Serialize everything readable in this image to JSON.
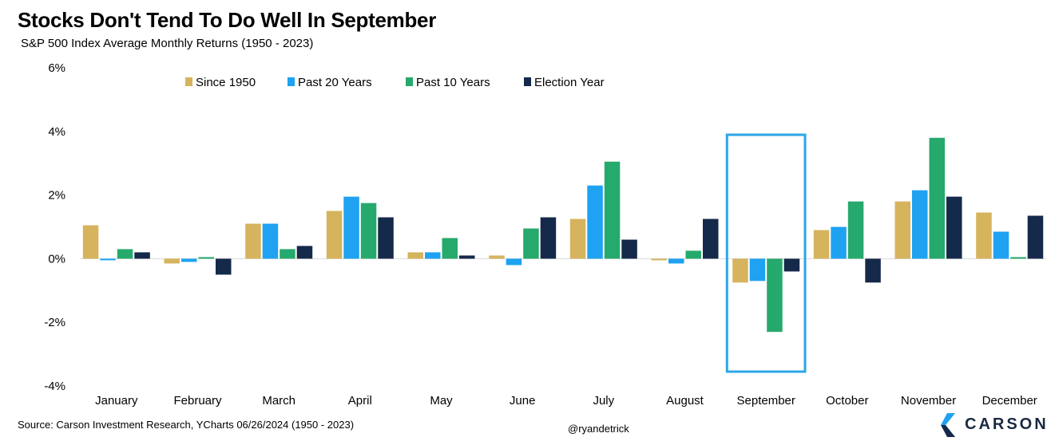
{
  "header": {
    "title": "Stocks Don't Tend To Do Well In September",
    "subtitle": "S&P 500 Index Average Monthly Returns (1950 - 2023)"
  },
  "footer": {
    "source": "Source: Carson Investment Research, YCharts 06/26/2024 (1950 - 2023)",
    "handle": "@ryandetrick",
    "logo_text": "CARSON"
  },
  "colors": {
    "since_1950": "#d6b35d",
    "past_20": "#1ea2f1",
    "past_10": "#26a96c",
    "election": "#15294a",
    "highlight": "#2ba6e8"
  },
  "chart_data": {
    "type": "bar",
    "title": "Stocks Don't Tend To Do Well In September",
    "subtitle": "S&P 500 Index Average Monthly Returns (1950 - 2023)",
    "categories": [
      "January",
      "February",
      "March",
      "April",
      "May",
      "June",
      "July",
      "August",
      "September",
      "October",
      "November",
      "December"
    ],
    "series": [
      {
        "name": "Since 1950",
        "color": "#d6b35d",
        "values": [
          1.05,
          -0.15,
          1.1,
          1.5,
          0.2,
          0.1,
          1.25,
          -0.05,
          -0.75,
          0.9,
          1.8,
          1.45
        ]
      },
      {
        "name": "Past 20 Years",
        "color": "#1ea2f1",
        "values": [
          -0.05,
          -0.1,
          1.1,
          1.95,
          0.2,
          -0.2,
          2.3,
          -0.15,
          -0.7,
          1.0,
          2.15,
          0.85
        ]
      },
      {
        "name": "Past 10 Years",
        "color": "#26a96c",
        "values": [
          0.3,
          0.05,
          0.3,
          1.75,
          0.65,
          0.95,
          3.05,
          0.25,
          -2.3,
          1.8,
          3.8,
          0.05
        ]
      },
      {
        "name": "Election Year",
        "color": "#15294a",
        "values": [
          0.2,
          -0.5,
          0.4,
          1.3,
          0.1,
          1.3,
          0.6,
          1.25,
          -0.4,
          -0.75,
          1.95,
          1.35
        ]
      }
    ],
    "ylim": [
      -4,
      6
    ],
    "yticks": [
      -4,
      -2,
      0,
      2,
      4,
      6
    ],
    "ytick_labels": [
      "-4%",
      "-2%",
      "0%",
      "2%",
      "4%",
      "6%"
    ],
    "legend_position": "top",
    "grid": false,
    "highlight_category": "September"
  }
}
